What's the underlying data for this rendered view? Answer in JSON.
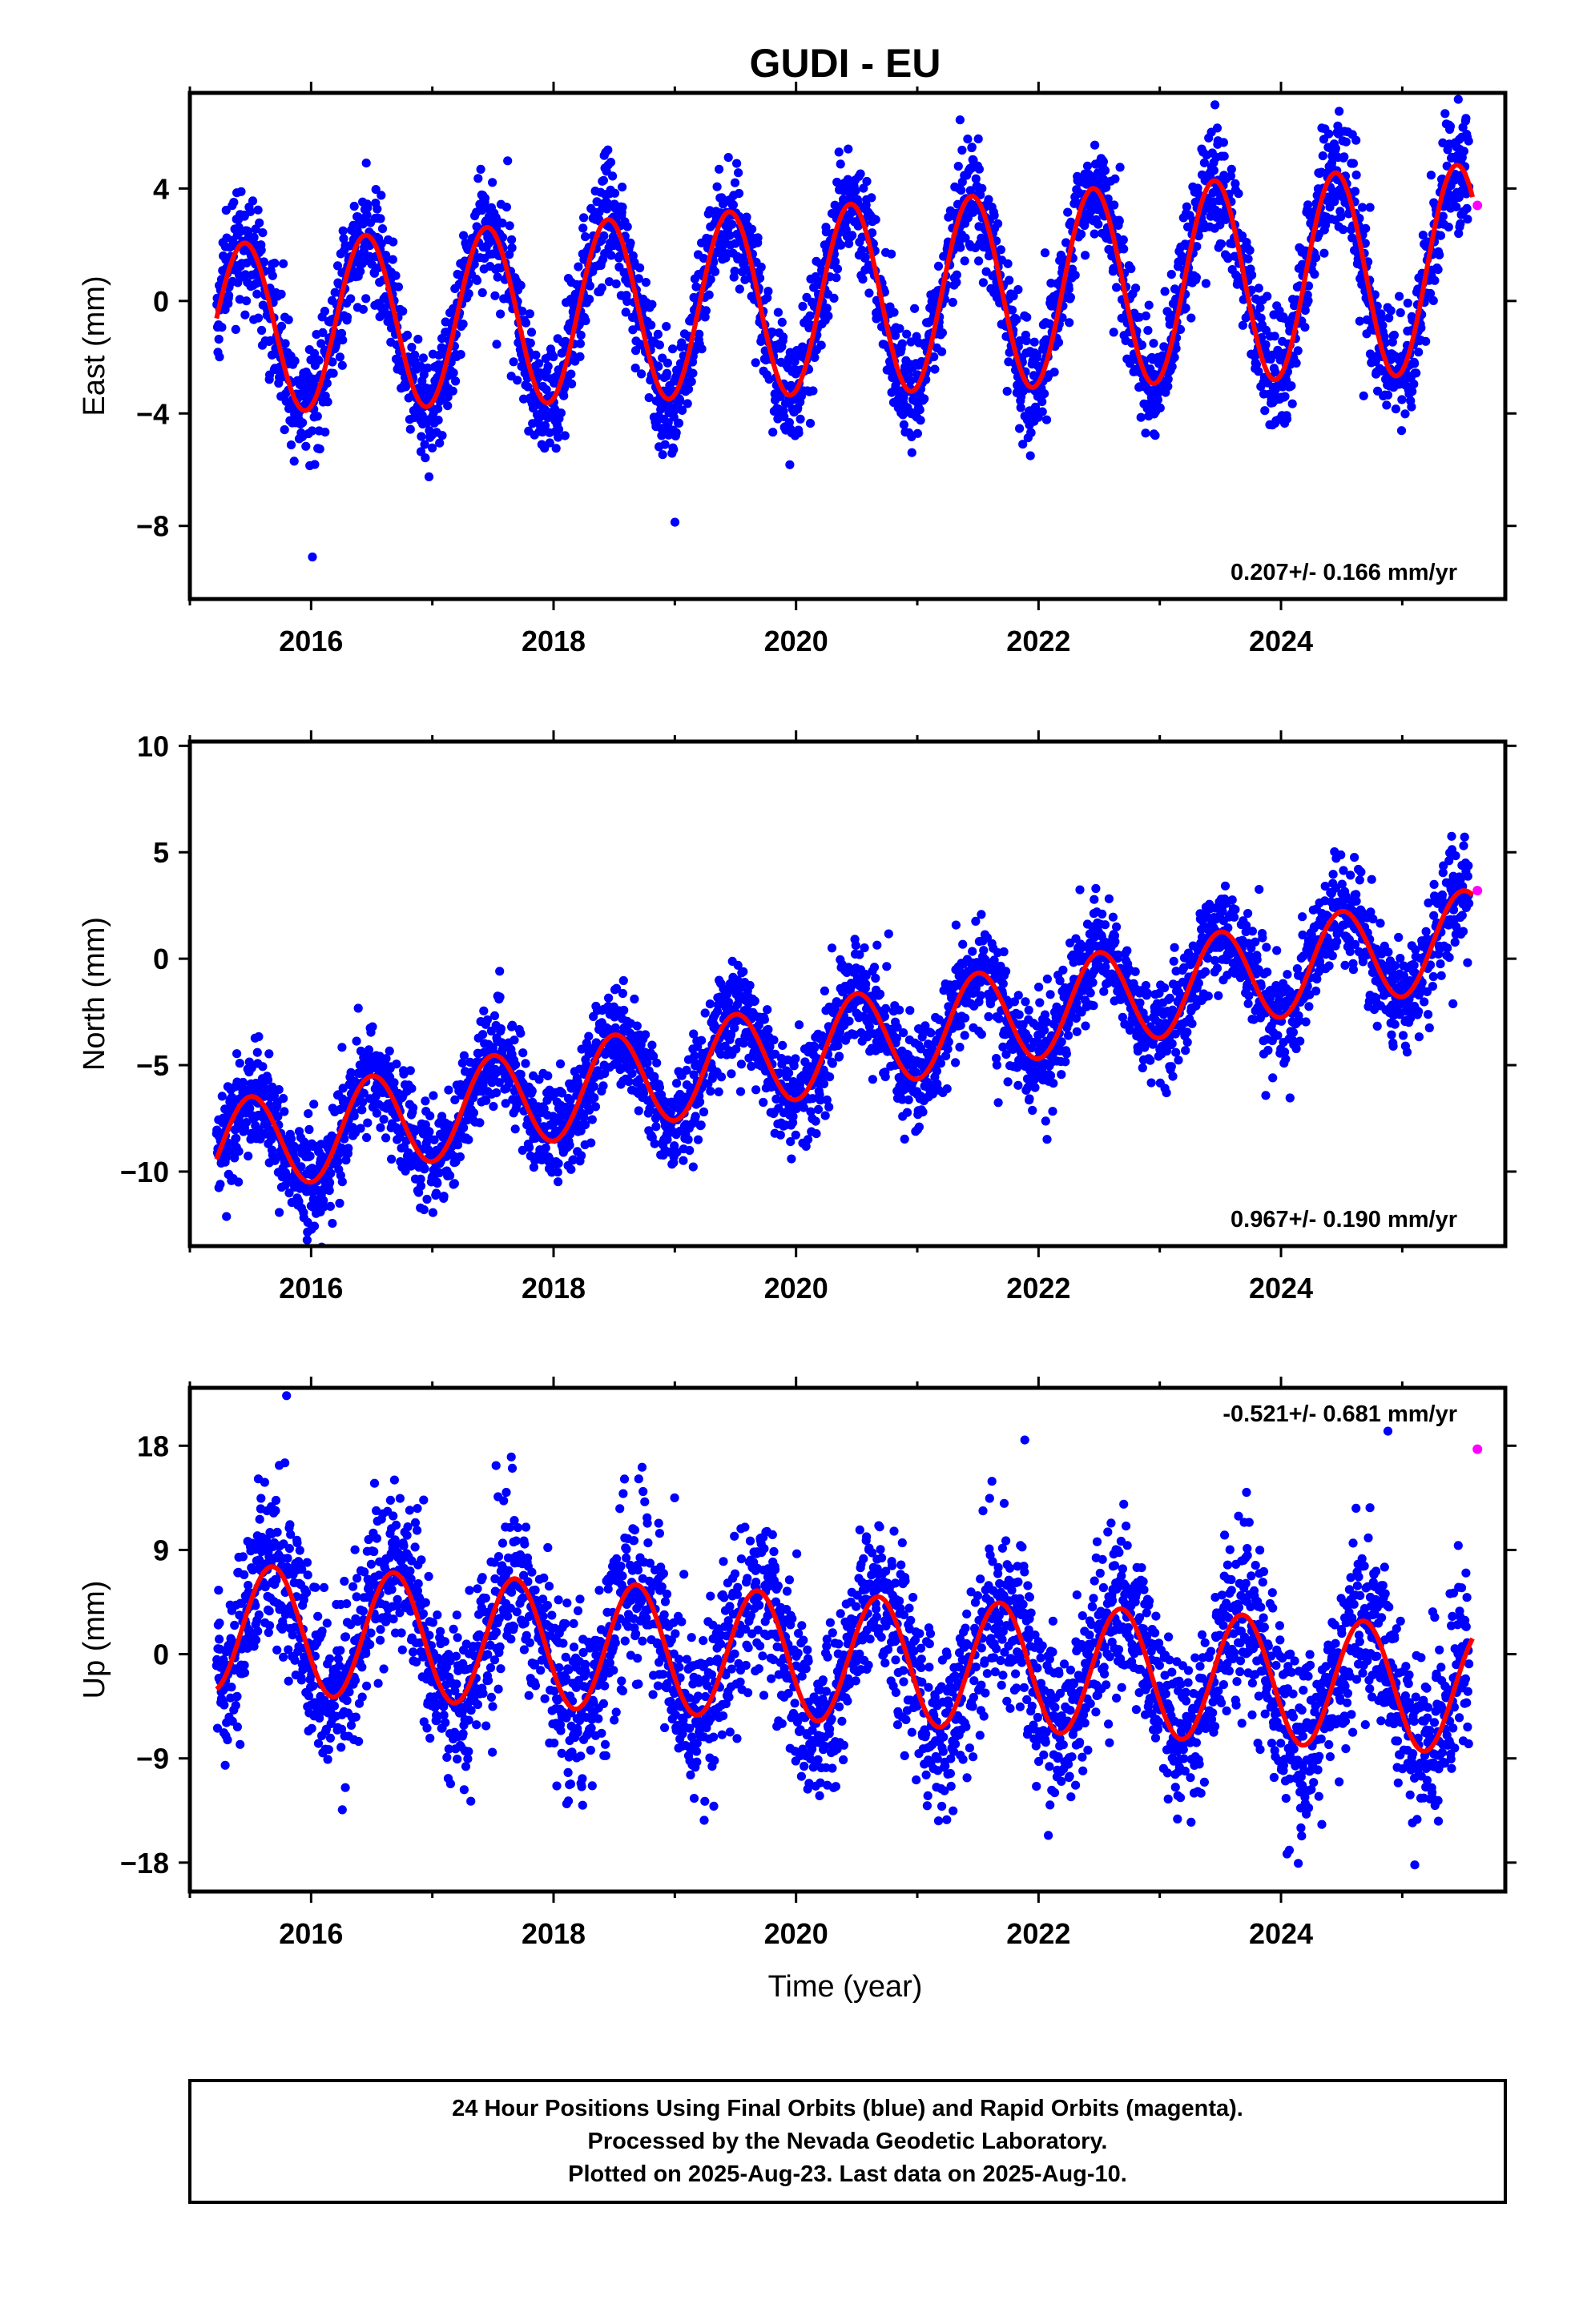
{
  "title": "GUDI - EU",
  "chart_data": [
    {
      "type": "scatter",
      "panel": "east",
      "ylabel": "East (mm)",
      "xlim": [
        2015.0,
        2025.85
      ],
      "ylim": [
        -10.6,
        7.4
      ],
      "yticks": [
        4,
        0,
        -4,
        -8
      ],
      "xticks": [
        2016,
        2018,
        2020,
        2022,
        2024
      ],
      "rate_text": "0.207+/- 0.166 mm/yr",
      "rate_position": "bottom-right",
      "model": {
        "rate": 0.207,
        "annual_amp": 3.0,
        "amp_growth": 0.07,
        "peak_phase": 0.45,
        "offset": -1.0,
        "semiannual_amp": 0.0,
        "scatter_sd": 1.0
      },
      "series": [
        {
          "color": "#0000ff",
          "start": 2015.22,
          "end": 2025.55
        },
        {
          "color": "#ff0000",
          "start": 2015.22,
          "end": 2025.58
        },
        {
          "color": "#ff00ff",
          "points": [
            [
              2025.62,
              3.4
            ]
          ]
        }
      ]
    },
    {
      "type": "scatter",
      "panel": "north",
      "ylabel": "North (mm)",
      "xlim": [
        2015.0,
        2025.85
      ],
      "ylim": [
        -13.5,
        10.2
      ],
      "yticks": [
        10,
        5,
        0,
        -5,
        -10
      ],
      "xticks": [
        2016,
        2018,
        2020,
        2022,
        2024
      ],
      "rate_text": "0.967+/- 0.190 mm/yr",
      "rate_position": "bottom-right",
      "model": {
        "rate": 0.967,
        "annual_amp": 2.25,
        "amp_growth": 0.0,
        "peak_phase": 0.5,
        "offset": -9.0,
        "semiannual_amp": 0.0,
        "scatter_sd": 1.2
      },
      "series": [
        {
          "color": "#0000ff",
          "start": 2015.22,
          "end": 2025.55
        },
        {
          "color": "#ff0000",
          "start": 2015.22,
          "end": 2025.58
        },
        {
          "color": "#ff00ff",
          "points": [
            [
              2025.62,
              3.2
            ]
          ]
        }
      ]
    },
    {
      "type": "scatter",
      "panel": "up",
      "ylabel": "Up (mm)",
      "xlabel": "Time (year)",
      "xlim": [
        2015.0,
        2025.85
      ],
      "ylim": [
        -20.5,
        23.0
      ],
      "yticks": [
        18,
        9,
        0,
        -9,
        -18
      ],
      "xticks": [
        2016,
        2018,
        2020,
        2022,
        2024
      ],
      "rate_text": "-0.521+/- 0.681 mm/yr",
      "rate_position": "top-right",
      "model": {
        "rate": -0.521,
        "annual_amp": 5.5,
        "amp_growth": 0.0,
        "peak_phase": 0.68,
        "offset": 2.3,
        "semiannual_amp": 0.0,
        "scatter_sd": 3.6
      },
      "series": [
        {
          "color": "#0000ff",
          "start": 2015.22,
          "end": 2025.55
        },
        {
          "color": "#ff0000",
          "start": 2015.22,
          "end": 2025.58
        },
        {
          "color": "#ff00ff",
          "points": [
            [
              2025.62,
              17.7
            ]
          ]
        }
      ]
    }
  ],
  "caption": {
    "line1": "24 Hour Positions Using Final Orbits (blue) and Rapid Orbits (magenta).",
    "line2": "Processed by the Nevada Geodetic Laboratory.",
    "line3": "Plotted on 2025-Aug-23. Last data on 2025-Aug-10."
  }
}
